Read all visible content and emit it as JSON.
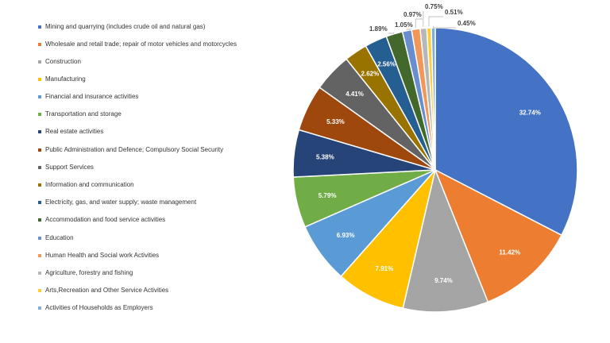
{
  "chart_data": {
    "type": "pie",
    "title": "",
    "legend_position": "left",
    "slices": [
      {
        "label": "Mining and quarrying (includes crude oil and natural gas)",
        "value": 32.74,
        "text": "32.74%",
        "color": "#4472C4"
      },
      {
        "label": "Wholesale and retail trade; repair of motor vehicles and motorcycles",
        "value": 11.42,
        "text": "11.42%",
        "color": "#ED7D31"
      },
      {
        "label": "Construction",
        "value": 9.74,
        "text": "9.74%",
        "color": "#A5A5A5"
      },
      {
        "label": "Manufacturing",
        "value": 7.91,
        "text": "7.91%",
        "color": "#FFC000"
      },
      {
        "label": "Financial and insurance activities",
        "value": 6.93,
        "text": "6.93%",
        "color": "#5B9BD5"
      },
      {
        "label": "Transportation and storage",
        "value": 5.79,
        "text": "5.79%",
        "color": "#70AD47"
      },
      {
        "label": "Real estate activities",
        "value": 5.38,
        "text": "5.38%",
        "color": "#264478"
      },
      {
        "label": "Public Administration and Defence; Compulsory Social Security",
        "value": 5.33,
        "text": "5.33%",
        "color": "#9E480E"
      },
      {
        "label": "Support Services",
        "value": 4.41,
        "text": "4.41%",
        "color": "#636363"
      },
      {
        "label": "Information and communication",
        "value": 2.62,
        "text": "2.62%",
        "color": "#997300"
      },
      {
        "label": "Electricity, gas, and water supply; waste management",
        "value": 2.56,
        "text": "2.56%",
        "color": "#255E91"
      },
      {
        "label": "Accommodation and food service activities",
        "value": 1.89,
        "text": "1.89%",
        "color": "#43682B"
      },
      {
        "label": "Education",
        "value": 1.05,
        "text": "1.05%",
        "color": "#698ED0"
      },
      {
        "label": "Human Health and Social work Activities",
        "value": 0.97,
        "text": "0.97%",
        "color": "#F1975A"
      },
      {
        "label": "Agriculture, forestry and fishing",
        "value": 0.75,
        "text": "0.75%",
        "color": "#B7B7B7"
      },
      {
        "label": "Arts,Recreation and Other Service Activities",
        "value": 0.51,
        "text": "0.51%",
        "color": "#FFCD33"
      },
      {
        "label": "Activities of Households as Employers",
        "value": 0.45,
        "text": "0.45%",
        "color": "#7CAFDD"
      }
    ]
  }
}
